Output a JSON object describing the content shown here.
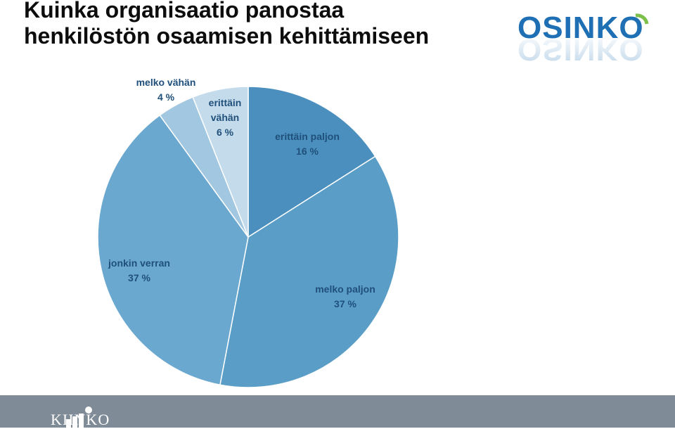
{
  "slide": {
    "title_line1": "Kuinka organisaatio panostaa",
    "title_line2": "henkilöstön osaamisen kehittämiseen"
  },
  "brand": {
    "osinko_text": "OSINKO",
    "kiinko_text": "KIINKO"
  },
  "colors": {
    "slices": [
      "#4b8fbe",
      "#5a9ec8",
      "#6aa8d0",
      "#a2c7e0",
      "#c4dbeb"
    ],
    "label": "#1f4f7a",
    "footer": "#7f8b96",
    "logo_blue": "#1e6fb3",
    "logo_green": "#7cc04b"
  },
  "chart_data": {
    "type": "pie",
    "title": "Kuinka organisaatio panostaa henkilöstön osaamisen kehittämiseen",
    "slices": [
      {
        "label_lines": [
          "erittäin paljon",
          "16 %"
        ],
        "value": 16
      },
      {
        "label_lines": [
          "melko paljon",
          "37 %"
        ],
        "value": 37
      },
      {
        "label_lines": [
          "jonkin verran",
          "37 %"
        ],
        "value": 37
      },
      {
        "label_lines": [
          "melko vähän",
          "4 %"
        ],
        "value": 4
      },
      {
        "label_lines": [
          "erittäin",
          "vähän",
          "6 %"
        ],
        "value": 6
      }
    ],
    "start_angle": "12 o'clock",
    "direction": "clockwise"
  }
}
